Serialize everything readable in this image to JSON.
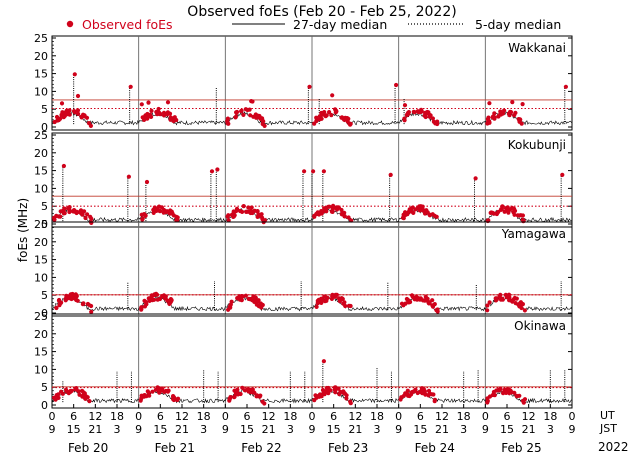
{
  "chart_data": {
    "type": "scatter",
    "title": "Observed foEs (Feb 20 - Feb 25, 2022)",
    "ylabel": "foEs (MHz)",
    "year": "2022",
    "legend": {
      "observed": "Observed foEs",
      "median27": "27-day median",
      "median5": "5-day median",
      "placement": "top"
    },
    "ylim": [
      0,
      25
    ],
    "yticks": [
      0,
      5,
      10,
      15,
      20,
      25
    ],
    "x_hours_range": [
      0,
      144
    ],
    "ut_label": "UT",
    "jst_label": "JST",
    "ut_tick_labels": [
      "0",
      "6",
      "12",
      "18",
      "0",
      "6",
      "12",
      "18",
      "0",
      "6",
      "12",
      "18",
      "0",
      "6",
      "12",
      "18",
      "0",
      "6",
      "12",
      "18",
      "0",
      "6",
      "12",
      "18",
      "0"
    ],
    "jst_tick_labels": [
      "9",
      "15",
      "21",
      "3",
      "9",
      "15",
      "21",
      "3",
      "9",
      "15",
      "21",
      "3",
      "9",
      "15",
      "21",
      "3",
      "9",
      "15",
      "21",
      "3",
      "9",
      "15",
      "21",
      "3",
      "9"
    ],
    "day_labels": [
      "Feb 20",
      "Feb 21",
      "Feb 22",
      "Feb 23",
      "Feb 24",
      "Feb 25"
    ],
    "colors": {
      "observed": "#d0021b",
      "median27": "#c0392b",
      "median5": "#d0021b",
      "line": "#000000"
    },
    "stations": [
      {
        "name": "Wakkanai",
        "median27": 7.6,
        "median5": 5.2,
        "spikes": [
          [
            6,
            15
          ],
          [
            21.5,
            11.5
          ],
          [
            45.5,
            11
          ],
          [
            71,
            11.5
          ],
          [
            74,
            8
          ],
          [
            95,
            12
          ],
          [
            97.5,
            8
          ],
          [
            142,
            11.5
          ]
        ]
      },
      {
        "name": "Kokubunji",
        "median27": 7.8,
        "median5": 5.0,
        "spikes": [
          [
            3,
            16.5
          ],
          [
            21,
            13.5
          ],
          [
            26,
            12
          ],
          [
            44,
            15
          ],
          [
            45.5,
            15.5
          ],
          [
            69.5,
            15
          ],
          [
            72,
            15
          ],
          [
            75,
            15
          ],
          [
            93.5,
            14
          ],
          [
            117,
            13
          ],
          [
            141,
            14
          ]
        ]
      },
      {
        "name": "Yamagawa",
        "median27": 5.1,
        "median5": 5.1,
        "spikes": [
          [
            21,
            8.5
          ],
          [
            45,
            9
          ],
          [
            69,
            9
          ],
          [
            93,
            8.5
          ],
          [
            117.5,
            8
          ],
          [
            141,
            9
          ]
        ]
      },
      {
        "name": "Okinawa",
        "median27": 5.1,
        "median5": 4.9,
        "spikes": [
          [
            3,
            7
          ],
          [
            18,
            9.5
          ],
          [
            22,
            9.5
          ],
          [
            42,
            10
          ],
          [
            46,
            9.5
          ],
          [
            66,
            9.5
          ],
          [
            70,
            9.5
          ],
          [
            75,
            12.5
          ],
          [
            90,
            10.5
          ],
          [
            94,
            9.5
          ],
          [
            114,
            9.5
          ],
          [
            118,
            10
          ],
          [
            138,
            10
          ],
          [
            142,
            10
          ]
        ]
      }
    ]
  }
}
